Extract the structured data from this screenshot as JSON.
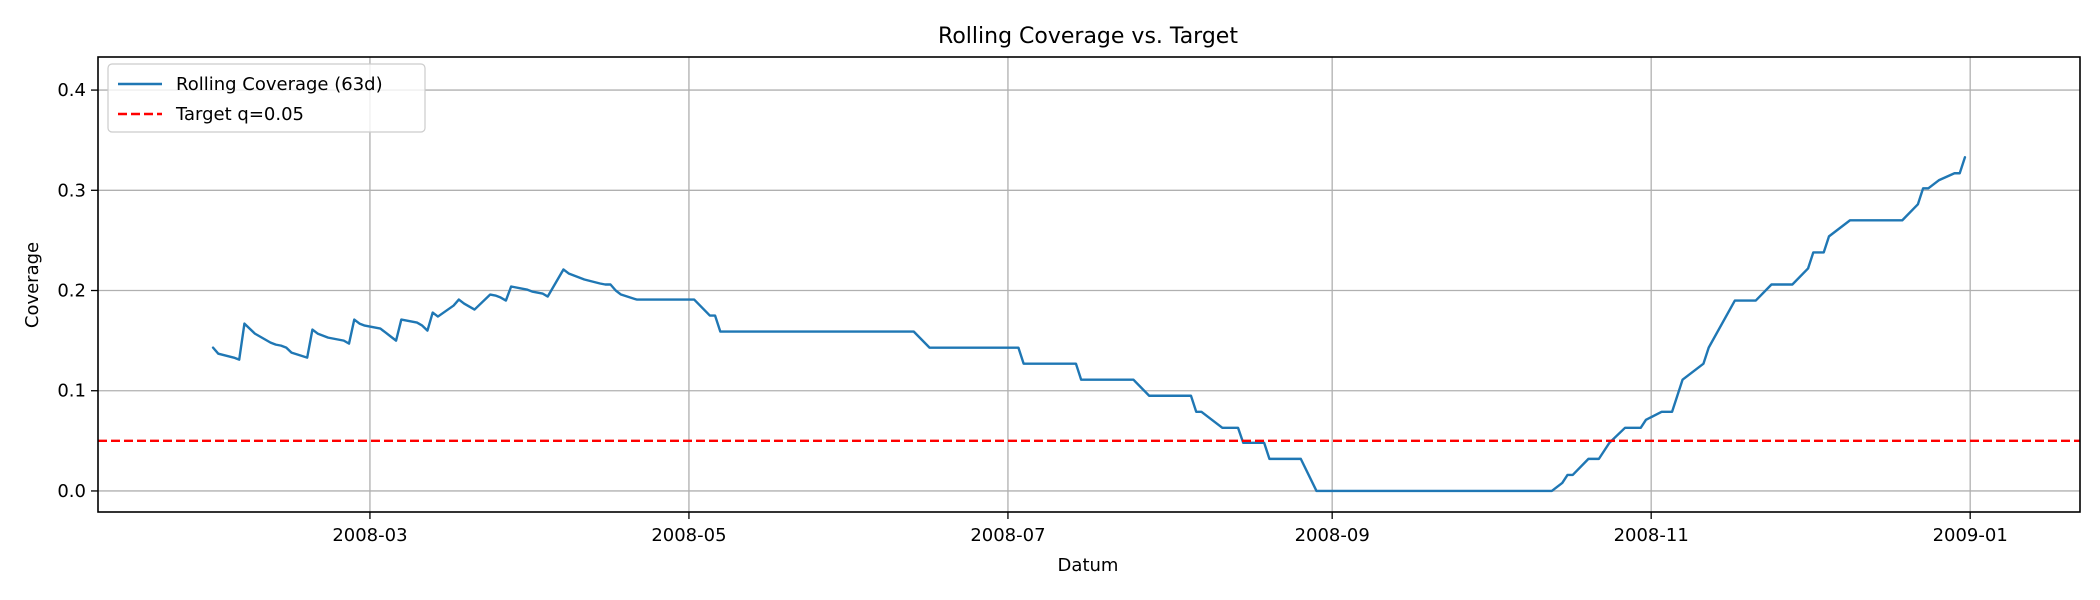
{
  "chart_data": {
    "type": "line",
    "title": "Rolling Coverage vs. Target",
    "xlabel": "Datum",
    "ylabel": "Coverage",
    "x_axis_type": "date",
    "xlim": [
      "2008-01-09",
      "2009-01-22"
    ],
    "ylim": [
      -0.021,
      0.433
    ],
    "x_ticks": [
      "2008-03-01",
      "2008-05-01",
      "2008-07-01",
      "2008-09-01",
      "2008-11-01",
      "2009-01-01"
    ],
    "x_tick_labels": [
      "2008-03",
      "2008-05",
      "2008-07",
      "2008-09",
      "2008-11",
      "2009-01"
    ],
    "y_ticks": [
      0.0,
      0.1,
      0.2,
      0.3,
      0.4
    ],
    "y_tick_labels": [
      "0.0",
      "0.1",
      "0.2",
      "0.3",
      "0.4"
    ],
    "grid": true,
    "legend_position": "top-left",
    "series": [
      {
        "name": "Rolling Coverage (63d)",
        "color": "#1f77b4",
        "style": "solid",
        "points": [
          [
            "2008-01-31",
            0.143
          ],
          [
            "2008-02-01",
            0.137
          ],
          [
            "2008-02-04",
            0.133
          ],
          [
            "2008-02-05",
            0.131
          ],
          [
            "2008-02-06",
            0.167
          ],
          [
            "2008-02-07",
            0.162
          ],
          [
            "2008-02-08",
            0.157
          ],
          [
            "2008-02-11",
            0.148
          ],
          [
            "2008-02-12",
            0.146
          ],
          [
            "2008-02-13",
            0.145
          ],
          [
            "2008-02-14",
            0.143
          ],
          [
            "2008-02-15",
            0.138
          ],
          [
            "2008-02-18",
            0.133
          ],
          [
            "2008-02-19",
            0.161
          ],
          [
            "2008-02-20",
            0.157
          ],
          [
            "2008-02-21",
            0.155
          ],
          [
            "2008-02-22",
            0.153
          ],
          [
            "2008-02-25",
            0.15
          ],
          [
            "2008-02-26",
            0.147
          ],
          [
            "2008-02-27",
            0.171
          ],
          [
            "2008-02-28",
            0.167
          ],
          [
            "2008-02-29",
            0.165
          ],
          [
            "2008-03-03",
            0.162
          ],
          [
            "2008-03-04",
            0.158
          ],
          [
            "2008-03-05",
            0.154
          ],
          [
            "2008-03-06",
            0.15
          ],
          [
            "2008-03-07",
            0.171
          ],
          [
            "2008-03-10",
            0.168
          ],
          [
            "2008-03-11",
            0.165
          ],
          [
            "2008-03-12",
            0.16
          ],
          [
            "2008-03-13",
            0.178
          ],
          [
            "2008-03-14",
            0.174
          ],
          [
            "2008-03-17",
            0.185
          ],
          [
            "2008-03-18",
            0.191
          ],
          [
            "2008-03-19",
            0.187
          ],
          [
            "2008-03-20",
            0.184
          ],
          [
            "2008-03-21",
            0.181
          ],
          [
            "2008-03-24",
            0.196
          ],
          [
            "2008-03-25",
            0.195
          ],
          [
            "2008-03-26",
            0.193
          ],
          [
            "2008-03-27",
            0.19
          ],
          [
            "2008-03-28",
            0.204
          ],
          [
            "2008-03-31",
            0.201
          ],
          [
            "2008-04-01",
            0.199
          ],
          [
            "2008-04-02",
            0.198
          ],
          [
            "2008-04-03",
            0.197
          ],
          [
            "2008-04-04",
            0.194
          ],
          [
            "2008-04-07",
            0.221
          ],
          [
            "2008-04-08",
            0.217
          ],
          [
            "2008-04-09",
            0.215
          ],
          [
            "2008-04-10",
            0.213
          ],
          [
            "2008-04-11",
            0.211
          ],
          [
            "2008-04-14",
            0.207
          ],
          [
            "2008-04-15",
            0.206
          ],
          [
            "2008-04-16",
            0.206
          ],
          [
            "2008-04-17",
            0.2
          ],
          [
            "2008-04-18",
            0.196
          ],
          [
            "2008-04-21",
            0.191
          ],
          [
            "2008-04-22",
            0.191
          ],
          [
            "2008-04-25",
            0.191
          ],
          [
            "2008-04-30",
            0.191
          ],
          [
            "2008-05-02",
            0.191
          ],
          [
            "2008-05-05",
            0.175
          ],
          [
            "2008-05-06",
            0.175
          ],
          [
            "2008-05-07",
            0.159
          ],
          [
            "2008-05-30",
            0.159
          ],
          [
            "2008-06-13",
            0.159
          ],
          [
            "2008-06-16",
            0.143
          ],
          [
            "2008-06-30",
            0.143
          ],
          [
            "2008-07-03",
            0.143
          ],
          [
            "2008-07-04",
            0.127
          ],
          [
            "2008-07-14",
            0.127
          ],
          [
            "2008-07-15",
            0.111
          ],
          [
            "2008-07-25",
            0.111
          ],
          [
            "2008-07-28",
            0.095
          ],
          [
            "2008-08-05",
            0.095
          ],
          [
            "2008-08-06",
            0.079
          ],
          [
            "2008-08-07",
            0.079
          ],
          [
            "2008-08-11",
            0.063
          ],
          [
            "2008-08-14",
            0.063
          ],
          [
            "2008-08-15",
            0.048
          ],
          [
            "2008-08-19",
            0.048
          ],
          [
            "2008-08-20",
            0.032
          ],
          [
            "2008-08-26",
            0.032
          ],
          [
            "2008-08-29",
            0.0
          ],
          [
            "2008-10-13",
            0.0
          ],
          [
            "2008-10-15",
            0.008
          ],
          [
            "2008-10-16",
            0.016
          ],
          [
            "2008-10-17",
            0.016
          ],
          [
            "2008-10-20",
            0.032
          ],
          [
            "2008-10-21",
            0.032
          ],
          [
            "2008-10-22",
            0.032
          ],
          [
            "2008-10-23",
            0.04
          ],
          [
            "2008-10-24",
            0.048
          ],
          [
            "2008-10-27",
            0.063
          ],
          [
            "2008-10-30",
            0.063
          ],
          [
            "2008-10-31",
            0.071
          ],
          [
            "2008-11-03",
            0.079
          ],
          [
            "2008-11-05",
            0.079
          ],
          [
            "2008-11-06",
            0.095
          ],
          [
            "2008-11-07",
            0.111
          ],
          [
            "2008-11-11",
            0.127
          ],
          [
            "2008-11-12",
            0.143
          ],
          [
            "2008-11-17",
            0.19
          ],
          [
            "2008-11-21",
            0.19
          ],
          [
            "2008-11-24",
            0.206
          ],
          [
            "2008-11-28",
            0.206
          ],
          [
            "2008-12-01",
            0.222
          ],
          [
            "2008-12-02",
            0.238
          ],
          [
            "2008-12-04",
            0.238
          ],
          [
            "2008-12-05",
            0.254
          ],
          [
            "2008-12-09",
            0.27
          ],
          [
            "2008-12-19",
            0.27
          ],
          [
            "2008-12-22",
            0.286
          ],
          [
            "2008-12-23",
            0.302
          ],
          [
            "2008-12-24",
            0.302
          ],
          [
            "2008-12-26",
            0.31
          ],
          [
            "2008-12-29",
            0.317
          ],
          [
            "2008-12-30",
            0.317
          ],
          [
            "2008-12-31",
            0.333
          ]
        ]
      },
      {
        "name": "Target q=0.05",
        "color": "#ff0000",
        "style": "dashed",
        "constant": 0.05
      }
    ]
  }
}
